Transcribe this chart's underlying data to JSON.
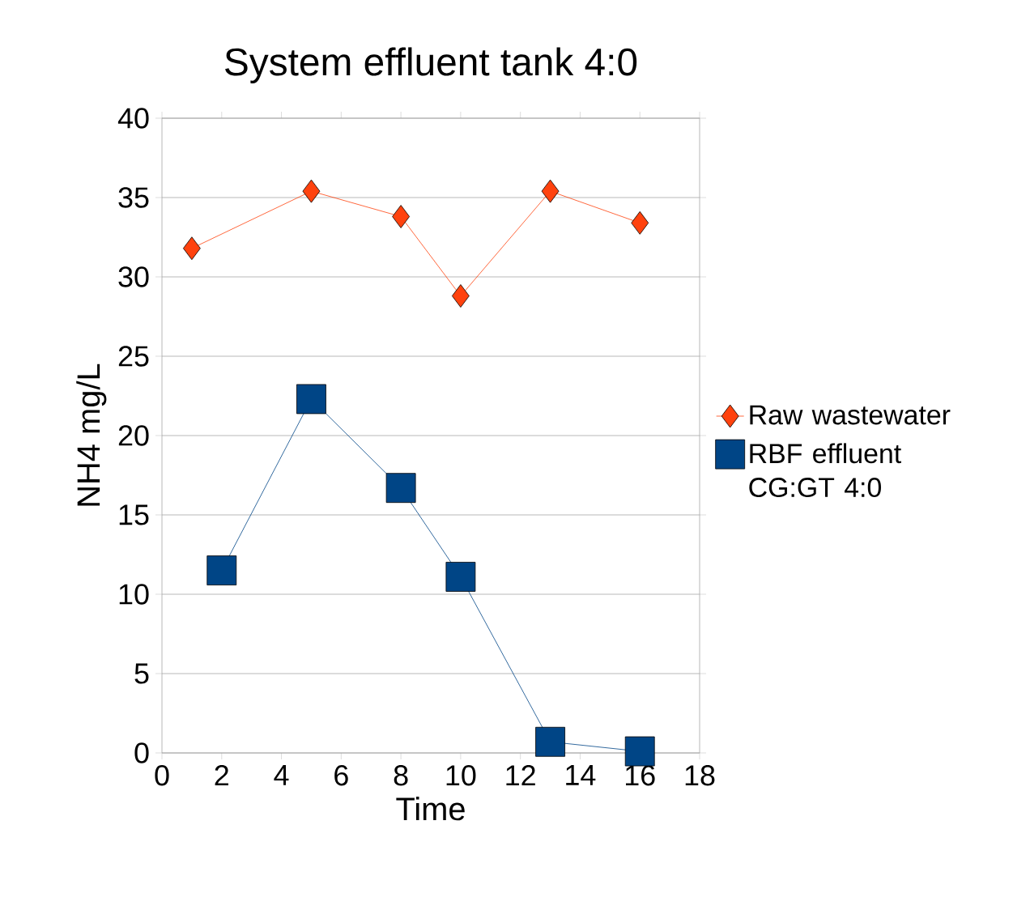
{
  "chart_data": {
    "type": "line",
    "title": "System effluent tank 4:0",
    "xlabel": "Time",
    "ylabel": "NH4 mg/L",
    "xlim": [
      0,
      18
    ],
    "xticks": [
      0,
      2,
      4,
      6,
      8,
      10,
      12,
      14,
      16,
      18
    ],
    "ylim": [
      0,
      40
    ],
    "yticks": [
      0,
      5,
      10,
      15,
      20,
      25,
      30,
      35,
      40
    ],
    "grid": "y",
    "legend": "right",
    "series": [
      {
        "name": "Raw wastewater",
        "color": "#ff420e",
        "marker": "diamond",
        "x": [
          1,
          5,
          8,
          10,
          13,
          16
        ],
        "values": [
          31.8,
          35.4,
          33.8,
          28.8,
          35.4,
          33.4
        ]
      },
      {
        "name": "RBF effluent CG:GT 4:0",
        "color": "#004586",
        "marker": "square",
        "x": [
          2,
          5,
          8,
          10,
          13,
          16
        ],
        "values": [
          11.5,
          22.3,
          16.7,
          11.1,
          0.7,
          0.1
        ]
      }
    ]
  }
}
